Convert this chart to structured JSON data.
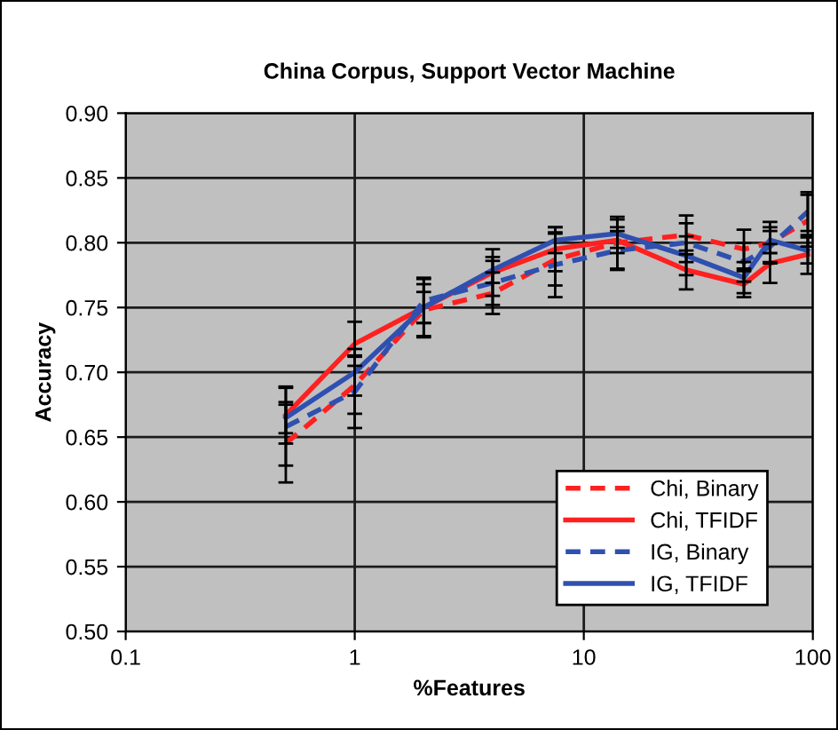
{
  "chart_data": {
    "type": "line",
    "title": "China Corpus, Support Vector Machine",
    "xlabel": "%Features",
    "ylabel": "Accuracy",
    "log": "x",
    "x": [
      0.5,
      1,
      2,
      4,
      7.5,
      14,
      28,
      50,
      65,
      95
    ],
    "series": [
      {
        "name": "Chi, Binary",
        "color": "#ff2020",
        "line_style": "dashed",
        "values": [
          0.645,
          0.69,
          0.748,
          0.761,
          0.787,
          0.8,
          0.806,
          0.795,
          0.8,
          0.817
        ],
        "errors": [
          0.03,
          0.022,
          0.02,
          0.016,
          0.02,
          0.02,
          0.015,
          0.015,
          0.016,
          0.02
        ]
      },
      {
        "name": "Chi, TFIDF",
        "color": "#ff2020",
        "line_style": "solid",
        "values": [
          0.667,
          0.722,
          0.75,
          0.777,
          0.795,
          0.802,
          0.779,
          0.768,
          0.784,
          0.791
        ],
        "errors": [
          0.022,
          0.017,
          0.023,
          0.018,
          0.017,
          0.01,
          0.015,
          0.01,
          0.015,
          0.015
        ]
      },
      {
        "name": "IG, Binary",
        "color": "#3050b0",
        "line_style": "dashed",
        "values": [
          0.658,
          0.685,
          0.755,
          0.769,
          0.783,
          0.794,
          0.8,
          0.785,
          0.797,
          0.824
        ],
        "errors": [
          0.03,
          0.028,
          0.017,
          0.017,
          0.025,
          0.015,
          0.015,
          0.015,
          0.012,
          0.015
        ]
      },
      {
        "name": "IG, TFIDF",
        "color": "#3050b0",
        "line_style": "solid",
        "values": [
          0.665,
          0.7,
          0.75,
          0.779,
          0.802,
          0.807,
          0.79,
          0.773,
          0.802,
          0.794
        ],
        "errors": [
          0.012,
          0.018,
          0.012,
          0.01,
          0.01,
          0.011,
          0.015,
          0.012,
          0.01,
          0.01
        ]
      }
    ],
    "xlim": [
      0.1,
      100
    ],
    "xticks": [
      0.1,
      1,
      10,
      100
    ],
    "ylim": [
      0.5,
      0.9
    ],
    "yticks": [
      {
        "value": 0.5,
        "label": "0.50"
      },
      {
        "value": 0.55,
        "label": "0.55"
      },
      {
        "value": 0.6,
        "label": "0.60"
      },
      {
        "value": 0.65,
        "label": "0.65"
      },
      {
        "value": 0.7,
        "label": "0.70"
      },
      {
        "value": 0.75,
        "label": "0.75"
      },
      {
        "value": 0.8,
        "label": "0.80"
      },
      {
        "value": 0.85,
        "label": "0.85"
      },
      {
        "value": 0.9,
        "label": "0.90"
      }
    ],
    "grid": true,
    "legend": "bottom right",
    "marker": "none"
  }
}
